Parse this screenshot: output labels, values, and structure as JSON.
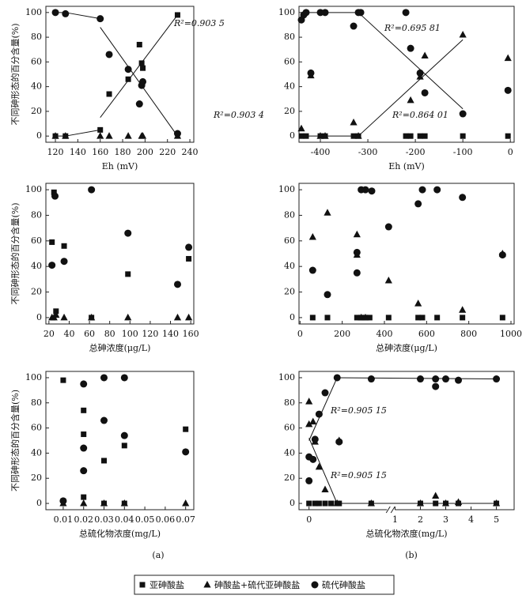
{
  "chart_data": [
    {
      "type": "scatter",
      "xlabel": "Eh (mV)",
      "ylabel": "不同砷形态的百分含量(%)",
      "xlim": [
        111.5,
        243.5
      ],
      "xticks": [
        120,
        140,
        160,
        180,
        200,
        220,
        240
      ],
      "ylim": [
        -5,
        105
      ],
      "yticks": [
        0,
        20,
        40,
        60,
        80,
        100
      ],
      "series": [
        {
          "marker": "square",
          "x": [
            120,
            129,
            160,
            168,
            185,
            195,
            197,
            198,
            229
          ],
          "values": [
            0,
            0,
            5,
            34,
            46,
            74,
            59,
            55,
            98
          ]
        },
        {
          "marker": "triangle",
          "x": [
            120,
            129,
            160,
            168,
            185,
            197,
            198,
            229
          ],
          "values": [
            0,
            0,
            0,
            0,
            0,
            0,
            0,
            0
          ]
        },
        {
          "marker": "circle",
          "x": [
            120,
            129,
            160,
            168,
            185,
            195,
            197,
            198,
            229
          ],
          "values": [
            100,
            99,
            95,
            66,
            54,
            26,
            41,
            44,
            2
          ]
        }
      ],
      "trend_lines": [
        {
          "x": [
            120,
            129,
            160
          ],
          "y": [
            0,
            0,
            5
          ]
        },
        {
          "x": [
            160,
            229
          ],
          "y": [
            15,
            98
          ]
        },
        {
          "x": [
            120,
            129,
            160
          ],
          "y": [
            100,
            100,
            95
          ]
        },
        {
          "x": [
            160,
            229
          ],
          "y": [
            88,
            0
          ]
        }
      ],
      "annotations": [
        "R²=0.903 5",
        "R²=0.903 4"
      ]
    },
    {
      "type": "scatter",
      "xlabel": "Eh (mV)",
      "xlim": [
        -445,
        8
      ],
      "xticks": [
        -400,
        -300,
        -200,
        -100,
        0
      ],
      "ylim": [
        -5,
        105
      ],
      "yticks": [
        0,
        20,
        40,
        60,
        80,
        100
      ],
      "series": [
        {
          "marker": "square",
          "x": [
            -440,
            -430,
            -400,
            -390,
            -330,
            -320,
            -220,
            -210,
            -190,
            -180,
            -100,
            -5
          ],
          "values": [
            0,
            0,
            0,
            0,
            0,
            0,
            0,
            0,
            0,
            0,
            0,
            0
          ]
        },
        {
          "marker": "triangle",
          "x": [
            -440,
            -420,
            -400,
            -390,
            -330,
            -320,
            -210,
            -190,
            -180,
            -100,
            -5
          ],
          "values": [
            6,
            49,
            0,
            0,
            11,
            0,
            29,
            48,
            65,
            82,
            63
          ]
        },
        {
          "marker": "circle",
          "x": [
            -440,
            -435,
            -430,
            -420,
            -400,
            -390,
            -330,
            -320,
            -315,
            -220,
            -210,
            -190,
            -180,
            -100,
            -5
          ],
          "values": [
            94,
            98,
            100,
            51,
            100,
            100,
            89,
            100,
            100,
            100,
            71,
            51,
            35,
            18,
            37
          ]
        }
      ],
      "trend_lines": [
        {
          "x": [
            -440,
            -320
          ],
          "y": [
            100,
            100
          ]
        },
        {
          "x": [
            -320,
            -100
          ],
          "y": [
            100,
            22
          ]
        },
        {
          "x": [
            -440,
            -320
          ],
          "y": [
            0,
            0
          ]
        },
        {
          "x": [
            -320,
            -100
          ],
          "y": [
            0,
            78
          ]
        }
      ],
      "annotations": [
        "R²=0.695 81",
        "R²=0.864 01"
      ]
    },
    {
      "type": "scatter",
      "xlabel": "总砷浓度(μg/L)",
      "ylabel": "不同砷形态的百分含量(%)",
      "xlim": [
        17,
        163
      ],
      "xticks": [
        20,
        40,
        60,
        80,
        100,
        120,
        140,
        160
      ],
      "ylim": [
        -5,
        105
      ],
      "yticks": [
        0,
        20,
        40,
        60,
        80,
        100
      ],
      "series": [
        {
          "marker": "square",
          "x": [
            23,
            25,
            27,
            35,
            62,
            98,
            158
          ],
          "values": [
            59,
            98,
            5,
            56,
            0,
            34,
            46
          ]
        },
        {
          "marker": "triangle",
          "x": [
            23,
            25,
            27,
            35,
            62,
            98,
            147,
            158
          ],
          "values": [
            0,
            0,
            2,
            0,
            0,
            0,
            0,
            0
          ]
        },
        {
          "marker": "circle",
          "x": [
            23,
            26,
            35,
            62,
            98,
            147,
            158
          ],
          "values": [
            41,
            95,
            44,
            100,
            66,
            26,
            55
          ]
        }
      ]
    },
    {
      "type": "scatter",
      "xlabel": "总砷浓度(μg/L)",
      "xlim": [
        -5,
        1015
      ],
      "xticks": [
        0,
        200,
        400,
        600,
        800,
        1000
      ],
      "ylim": [
        -5,
        105
      ],
      "yticks": [
        0,
        20,
        40,
        60,
        80,
        100
      ],
      "series": [
        {
          "marker": "square",
          "x": [
            60,
            130,
            270,
            290,
            310,
            330,
            420,
            560,
            580,
            650,
            770,
            960
          ],
          "values": [
            0,
            0,
            0,
            0,
            0,
            0,
            0,
            0,
            0,
            0,
            0,
            0
          ]
        },
        {
          "marker": "triangle",
          "x": [
            60,
            130,
            270,
            270,
            290,
            310,
            420,
            560,
            770,
            960
          ],
          "values": [
            63,
            82,
            65,
            49,
            0,
            0,
            29,
            11,
            6,
            50
          ]
        },
        {
          "marker": "circle",
          "x": [
            60,
            130,
            270,
            270,
            290,
            310,
            340,
            420,
            560,
            580,
            650,
            770,
            960
          ],
          "values": [
            37,
            18,
            51,
            35,
            100,
            100,
            99,
            71,
            89,
            100,
            100,
            94,
            49
          ]
        }
      ]
    },
    {
      "type": "scatter",
      "xlabel": "总硫化物浓度(mg/L)",
      "ylabel": "不同砷形态的百分含量(%)",
      "xlim": [
        0.0015,
        0.074
      ],
      "xticks": [
        0.01,
        0.02,
        0.03,
        0.04,
        0.05,
        0.06,
        0.07
      ],
      "ylim": [
        -5,
        105
      ],
      "yticks": [
        0,
        20,
        40,
        60,
        80,
        100
      ],
      "series": [
        {
          "marker": "square",
          "x": [
            0.01,
            0.02,
            0.02,
            0.02,
            0.03,
            0.03,
            0.04,
            0.04,
            0.07
          ],
          "values": [
            98,
            74,
            55,
            5,
            34,
            0,
            46,
            0,
            59
          ]
        },
        {
          "marker": "triangle",
          "x": [
            0.01,
            0.02,
            0.03,
            0.04,
            0.07
          ],
          "values": [
            0,
            0,
            0,
            0,
            0
          ]
        },
        {
          "marker": "circle",
          "x": [
            0.01,
            0.02,
            0.02,
            0.02,
            0.03,
            0.03,
            0.04,
            0.04,
            0.07
          ],
          "values": [
            2,
            95,
            44,
            26,
            100,
            66,
            100,
            54,
            41
          ]
        }
      ]
    },
    {
      "type": "scatter",
      "xlabel": "总硫化物浓度(mg/L)",
      "x_segments": [
        {
          "xlim": [
            -0.05,
            0.4
          ],
          "xticks": [
            0
          ]
        },
        {
          "xlim": [
            0.9,
            5.7
          ],
          "xticks": [
            1,
            2,
            3,
            4,
            5
          ]
        }
      ],
      "ylim": [
        -5,
        105
      ],
      "yticks": [
        0,
        20,
        40,
        60,
        80,
        100
      ],
      "series": [
        {
          "marker": "square",
          "x": [
            0,
            0.03,
            0.05,
            0.08,
            0.11,
            0.14,
            0.15,
            0.31,
            2,
            2.6,
            3,
            3.5,
            5
          ],
          "values": [
            0,
            0,
            0,
            0,
            0,
            0,
            0,
            0,
            0,
            0,
            0,
            0,
            0
          ]
        },
        {
          "marker": "triangle",
          "x": [
            0,
            0,
            0.02,
            0.03,
            0.05,
            0.08,
            0.14,
            0.15,
            0.31,
            2,
            2.6,
            3,
            3.5,
            5
          ],
          "values": [
            81,
            63,
            65,
            49,
            29,
            11,
            0,
            50,
            0,
            0,
            6,
            0,
            1,
            0
          ]
        },
        {
          "marker": "circle",
          "x": [
            0,
            0,
            0.02,
            0.03,
            0.05,
            0.08,
            0.14,
            0.15,
            0.31,
            2,
            2.6,
            2.6,
            3,
            3.5,
            5
          ],
          "values": [
            37,
            18,
            35,
            51,
            71,
            88,
            100,
            49,
            99,
            99,
            99,
            93,
            99,
            98,
            99
          ]
        }
      ],
      "trend_lines": [
        {
          "x": [
            0,
            0.14
          ],
          "y": [
            50,
            100
          ]
        },
        {
          "x": [
            0.14,
            5
          ],
          "y": [
            100,
            99
          ]
        },
        {
          "x": [
            0,
            0.14
          ],
          "y": [
            52,
            0
          ]
        },
        {
          "x": [
            0.14,
            5
          ],
          "y": [
            0,
            0
          ]
        }
      ],
      "annotations": [
        "R²=0.905 15",
        "R²=0.905 15"
      ]
    }
  ],
  "panel_labels": [
    "(a)",
    "(b)"
  ],
  "legend": [
    {
      "name": "亚砷酸盐",
      "marker": "square"
    },
    {
      "name": "砷酸盐+硫代亚砷酸盐",
      "marker": "triangle"
    },
    {
      "name": "硫代砷酸盐",
      "marker": "circle"
    }
  ]
}
